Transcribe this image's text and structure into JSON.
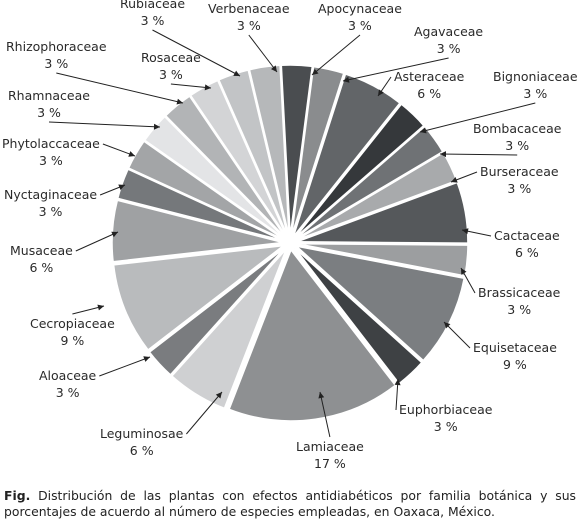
{
  "chart_data": {
    "type": "pie",
    "exploded": true,
    "slices": [
      {
        "label": "Apocynaceae",
        "value": 3,
        "value_label": "3 %",
        "color": "#4a4d50"
      },
      {
        "label": "Agavaceae",
        "value": 3,
        "value_label": "3 %",
        "color": "#8a8c8e"
      },
      {
        "label": "Asteraceae",
        "value": 6,
        "value_label": "6 %",
        "color": "#626568"
      },
      {
        "label": "Bignoniaceae",
        "value": 3,
        "value_label": "3 %",
        "color": "#35383b"
      },
      {
        "label": "Bombacaceae",
        "value": 3,
        "value_label": "3 %",
        "color": "#6f7275"
      },
      {
        "label": "Burseraceae",
        "value": 3,
        "value_label": "3 %",
        "color": "#a8aaac"
      },
      {
        "label": "Cactaceae",
        "value": 6,
        "value_label": "6 %",
        "color": "#55585b"
      },
      {
        "label": "Brassicaceae",
        "value": 3,
        "value_label": "3 %",
        "color": "#9c9ea0"
      },
      {
        "label": "Equisetaceae",
        "value": 9,
        "value_label": "9 %",
        "color": "#7b7e81"
      },
      {
        "label": "Euphorbiaceae",
        "value": 3,
        "value_label": "3 %",
        "color": "#3e4144"
      },
      {
        "label": "Lamiaceae",
        "value": 17,
        "value_label": "17 %",
        "color": "#8e9092"
      },
      {
        "label": "Leguminosae",
        "value": 6,
        "value_label": "6 %",
        "color": "#cfd0d2"
      },
      {
        "label": "Aloaceae",
        "value": 3,
        "value_label": "3 %",
        "color": "#7a7c7f"
      },
      {
        "label": "Cecropiaceae",
        "value": 9,
        "value_label": "9 %",
        "color": "#b9bbbd"
      },
      {
        "label": "Musaceae",
        "value": 6,
        "value_label": "6 %",
        "color": "#9fa1a3"
      },
      {
        "label": "Nyctaginaceae",
        "value": 3,
        "value_label": "3 %",
        "color": "#75787b"
      },
      {
        "label": "Phytolaccaceae",
        "value": 3,
        "value_label": "3 %",
        "color": "#a3a5a7"
      },
      {
        "label": "Rhamnaceae",
        "value": 3,
        "value_label": "3 %",
        "color": "#e3e4e6"
      },
      {
        "label": "Rhizophoraceae",
        "value": 3,
        "value_label": "3 %",
        "color": "#b2b4b6"
      },
      {
        "label": "Rosaceae",
        "value": 3,
        "value_label": "3 %",
        "color": "#d3d4d6"
      },
      {
        "label": "Rubiaceae",
        "value": 3,
        "value_label": "3 %",
        "color": "#c2c4c6"
      },
      {
        "label": "Verbenaceae",
        "value": 3,
        "value_label": "3 %",
        "color": "#b6b8ba"
      }
    ]
  },
  "caption": {
    "prefix": "Fig.",
    "text": " Distribución de las plantas con efectos antidiabéticos  por familia botánica y sus porcentajes de acuerdo al número de especies empleadas, en Oaxaca, México."
  }
}
